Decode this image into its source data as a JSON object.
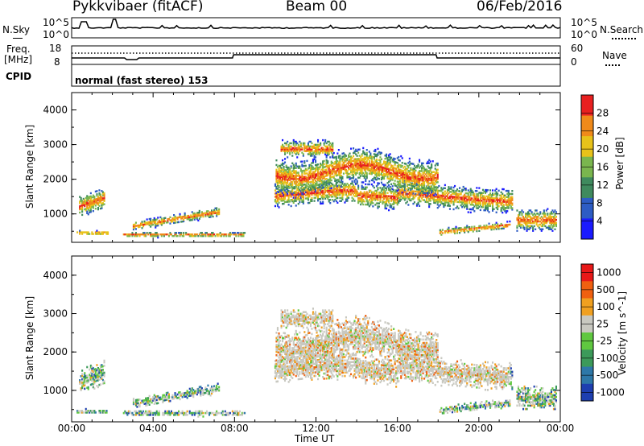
{
  "header": {
    "station": "Pykkvibaer (fitACF)",
    "beam": "Beam 00",
    "date": "06/Feb/2016"
  },
  "nsky_panel": {
    "left_label": "N.Sky",
    "left_ticks": [
      "10^5",
      "10^0"
    ],
    "right_label": "N.Search",
    "right_ticks": [
      "10^5",
      "10^0"
    ]
  },
  "freq_panel": {
    "left_label_top": "Freq.",
    "left_label_bottom": "[MHz]",
    "left_ticks": [
      "18",
      "8"
    ],
    "right_label": "Nave",
    "right_ticks": [
      "60",
      "0"
    ]
  },
  "cpid_panel": {
    "label": "CPID",
    "text": "normal (fast stereo) 153"
  },
  "chart_data": [
    {
      "type": "heatmap",
      "name": "power",
      "ylabel": "Slant Range [km]",
      "yticks": [
        "4000",
        "3000",
        "2000",
        "1000"
      ],
      "ylim": [
        180,
        4500
      ],
      "colorbar_label": "Power [dB]",
      "colorbar_ticks": [
        "28",
        "24",
        "20",
        "16",
        "12",
        "8",
        "4"
      ],
      "colors": [
        "#1a1aff",
        "#2d5cc4",
        "#3f8a5e",
        "#7ab64e",
        "#e8c21a",
        "#f08a1a",
        "#e82020"
      ],
      "note_regions": [
        {
          "t0": 0.3,
          "t1": 1.5,
          "r0": 400,
          "r1": 1800
        },
        {
          "t0": 3.0,
          "t1": 7.2,
          "r0": 500,
          "r1": 1050
        },
        {
          "t0": 9.8,
          "t1": 21.5,
          "r0": 900,
          "r1": 3100
        }
      ]
    },
    {
      "type": "heatmap",
      "name": "velocity",
      "ylabel": "Slant Range [km]",
      "yticks": [
        "4000",
        "3000",
        "2000",
        "1000"
      ],
      "ylim": [
        180,
        4500
      ],
      "colorbar_label": "Velocity [m s^-1]",
      "colorbar_ticks": [
        "1000",
        "500",
        "100",
        "25",
        "-25",
        "-100",
        "-500",
        "-1000"
      ],
      "colors": [
        "#1e3fb0",
        "#2e78a8",
        "#3c9a5a",
        "#60c840",
        "#c8c8c0",
        "#f0a020",
        "#f06010",
        "#e81818"
      ]
    }
  ],
  "x_axis": {
    "label": "Time UT",
    "ticks": [
      "00:00",
      "04:00",
      "08:00",
      "12:00",
      "16:00",
      "20:00",
      "00:00"
    ]
  }
}
